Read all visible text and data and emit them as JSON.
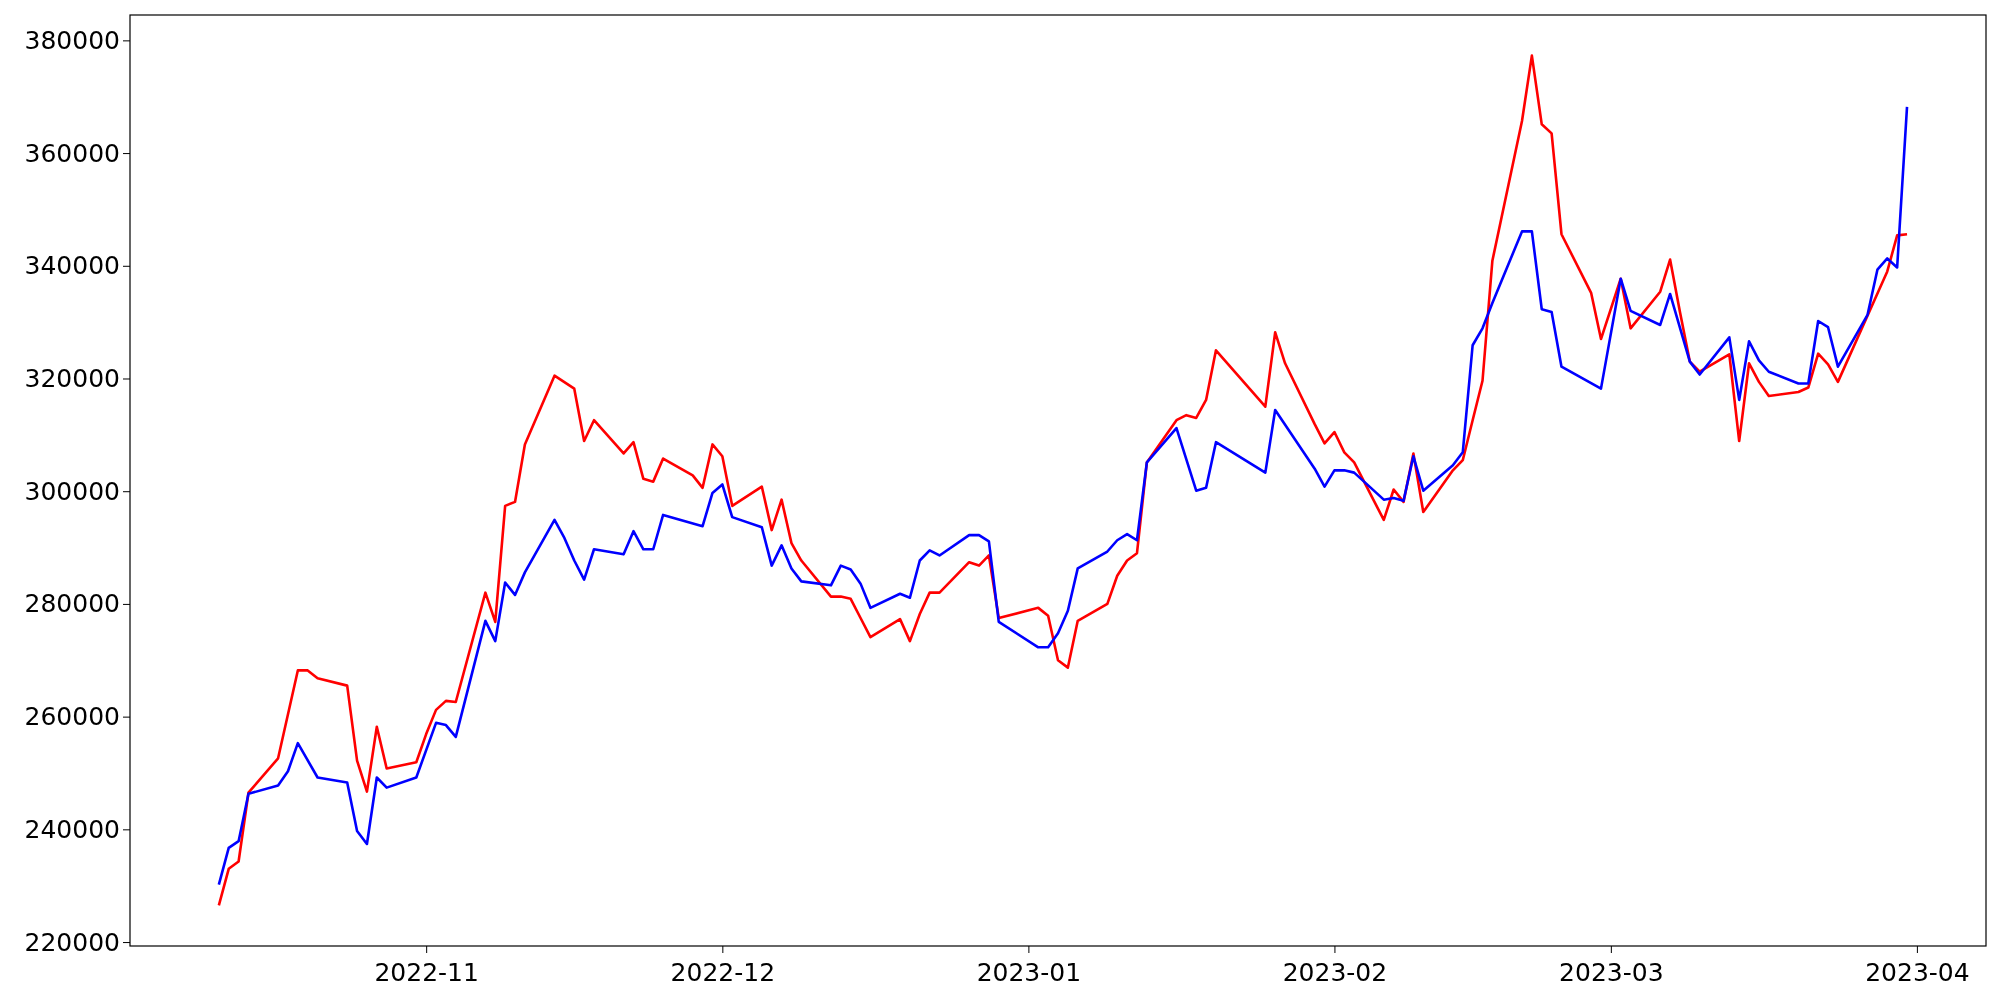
{
  "chart_data": {
    "type": "line",
    "xlim": [
      "2022-10-02",
      "2023-04-08"
    ],
    "xticks": [
      "2022-11",
      "2022-12",
      "2023-01",
      "2023-02",
      "2023-03",
      "2023-04"
    ],
    "ylim": [
      219300,
      384500
    ],
    "yticks": [
      220000,
      240000,
      260000,
      280000,
      300000,
      320000,
      340000,
      360000,
      380000
    ],
    "grid": false,
    "line_style": "solid",
    "marker": "none",
    "series": [
      {
        "color": "#ff0000",
        "x": [
          "2022-10-11",
          "2022-10-12",
          "2022-10-13",
          "2022-10-14",
          "2022-10-17",
          "2022-10-19",
          "2022-10-20",
          "2022-10-21",
          "2022-10-24",
          "2022-10-25",
          "2022-10-26",
          "2022-10-27",
          "2022-10-28",
          "2022-10-31",
          "2022-11-01",
          "2022-11-02",
          "2022-11-03",
          "2022-11-04",
          "2022-11-07",
          "2022-11-08",
          "2022-11-09",
          "2022-11-10",
          "2022-11-11",
          "2022-11-14",
          "2022-11-16",
          "2022-11-17",
          "2022-11-18",
          "2022-11-21",
          "2022-11-22",
          "2022-11-23",
          "2022-11-24",
          "2022-11-25",
          "2022-11-28",
          "2022-11-29",
          "2022-11-30",
          "2022-12-01",
          "2022-12-02",
          "2022-12-05",
          "2022-12-06",
          "2022-12-07",
          "2022-12-08",
          "2022-12-09",
          "2022-12-12",
          "2022-12-13",
          "2022-12-14",
          "2022-12-15",
          "2022-12-16",
          "2022-12-19",
          "2022-12-20",
          "2022-12-21",
          "2022-12-22",
          "2022-12-23",
          "2022-12-26",
          "2022-12-27",
          "2022-12-28",
          "2022-12-29",
          "2023-01-02",
          "2023-01-03",
          "2023-01-04",
          "2023-01-05",
          "2023-01-06",
          "2023-01-09",
          "2023-01-10",
          "2023-01-11",
          "2023-01-12",
          "2023-01-13",
          "2023-01-16",
          "2023-01-17",
          "2023-01-18",
          "2023-01-19",
          "2023-01-20",
          "2023-01-25",
          "2023-01-26",
          "2023-01-27",
          "2023-01-30",
          "2023-01-31",
          "2023-02-01",
          "2023-02-02",
          "2023-02-03",
          "2023-02-06",
          "2023-02-07",
          "2023-02-08",
          "2023-02-09",
          "2023-02-10",
          "2023-02-13",
          "2023-02-14",
          "2023-02-15",
          "2023-02-16",
          "2023-02-17",
          "2023-02-20",
          "2023-02-21",
          "2023-02-22",
          "2023-02-23",
          "2023-02-24",
          "2023-02-27",
          "2023-02-28",
          "2023-03-02",
          "2023-03-03",
          "2023-03-06",
          "2023-03-07",
          "2023-03-08",
          "2023-03-09",
          "2023-03-10",
          "2023-03-13",
          "2023-03-14",
          "2023-03-15",
          "2023-03-16",
          "2023-03-17",
          "2023-03-20",
          "2023-03-21",
          "2023-03-22",
          "2023-03-23",
          "2023-03-24",
          "2023-03-29",
          "2023-03-30",
          "2023-03-31"
        ],
        "values": [
          226500,
          233000,
          234300,
          246500,
          252600,
          268200,
          268200,
          266800,
          265500,
          252200,
          246700,
          258200,
          250800,
          251900,
          256900,
          261200,
          262800,
          262600,
          282000,
          276800,
          297400,
          298100,
          308300,
          320500,
          318200,
          308900,
          312600,
          306700,
          308700,
          302200,
          301700,
          305800,
          302800,
          300600,
          308300,
          306200,
          297400,
          300800,
          293100,
          298500,
          290800,
          287700,
          281300,
          281300,
          280900,
          277500,
          274100,
          277300,
          273400,
          278200,
          282000,
          282000,
          287400,
          286800,
          288600,
          277500,
          279300,
          277900,
          270000,
          268700,
          277000,
          280000,
          285000,
          287700,
          289000,
          305100,
          312600,
          313500,
          313000,
          316200,
          325000,
          315000,
          328200,
          322700,
          311900,
          308500,
          310500,
          306900,
          305100,
          294900,
          300300,
          298100,
          306700,
          296300,
          303700,
          305500,
          312600,
          319600,
          340900,
          365700,
          377300,
          365100,
          363500,
          345600,
          335200,
          327000,
          337700,
          328900,
          335400,
          341100,
          331800,
          323000,
          321200,
          324300,
          308900,
          322700,
          319400,
          316900,
          317600,
          318400,
          324400,
          322500,
          319400,
          339000,
          345400,
          345600
        ]
      },
      {
        "color": "#0000ff",
        "x": [
          "2022-10-11",
          "2022-10-12",
          "2022-10-13",
          "2022-10-14",
          "2022-10-17",
          "2022-10-18",
          "2022-10-19",
          "2022-10-21",
          "2022-10-24",
          "2022-10-25",
          "2022-10-26",
          "2022-10-27",
          "2022-10-28",
          "2022-10-31",
          "2022-11-02",
          "2022-11-03",
          "2022-11-04",
          "2022-11-07",
          "2022-11-08",
          "2022-11-09",
          "2022-11-10",
          "2022-11-11",
          "2022-11-14",
          "2022-11-15",
          "2022-11-16",
          "2022-11-17",
          "2022-11-18",
          "2022-11-21",
          "2022-11-22",
          "2022-11-23",
          "2022-11-24",
          "2022-11-25",
          "2022-11-29",
          "2022-11-30",
          "2022-12-01",
          "2022-12-02",
          "2022-12-05",
          "2022-12-06",
          "2022-12-07",
          "2022-12-08",
          "2022-12-09",
          "2022-12-12",
          "2022-12-13",
          "2022-12-14",
          "2022-12-15",
          "2022-12-16",
          "2022-12-19",
          "2022-12-20",
          "2022-12-21",
          "2022-12-22",
          "2022-12-23",
          "2022-12-26",
          "2022-12-27",
          "2022-12-28",
          "2022-12-29",
          "2023-01-02",
          "2023-01-03",
          "2023-01-04",
          "2023-01-05",
          "2023-01-06",
          "2023-01-09",
          "2023-01-10",
          "2023-01-11",
          "2023-01-12",
          "2023-01-13",
          "2023-01-16",
          "2023-01-18",
          "2023-01-19",
          "2023-01-20",
          "2023-01-25",
          "2023-01-26",
          "2023-01-30",
          "2023-01-31",
          "2023-02-01",
          "2023-02-02",
          "2023-02-03",
          "2023-02-06",
          "2023-02-07",
          "2023-02-08",
          "2023-02-09",
          "2023-02-10",
          "2023-02-13",
          "2023-02-14",
          "2023-02-15",
          "2023-02-16",
          "2023-02-17",
          "2023-02-20",
          "2023-02-21",
          "2023-02-22",
          "2023-02-23",
          "2023-02-24",
          "2023-02-28",
          "2023-03-02",
          "2023-03-03",
          "2023-03-06",
          "2023-03-07",
          "2023-03-09",
          "2023-03-10",
          "2023-03-13",
          "2023-03-14",
          "2023-03-15",
          "2023-03-16",
          "2023-03-17",
          "2023-03-20",
          "2023-03-21",
          "2023-03-22",
          "2023-03-23",
          "2023-03-24",
          "2023-03-27",
          "2023-03-28",
          "2023-03-29",
          "2023-03-30",
          "2023-03-31"
        ],
        "values": [
          230200,
          236700,
          237900,
          246300,
          247800,
          250300,
          255300,
          249200,
          248300,
          239700,
          237400,
          249200,
          247400,
          249200,
          258900,
          258500,
          256400,
          277000,
          273400,
          283800,
          281600,
          285600,
          294900,
          291700,
          287700,
          284300,
          289700,
          288800,
          292900,
          289700,
          289700,
          295800,
          293800,
          299700,
          301200,
          295400,
          293600,
          286800,
          290400,
          286300,
          284000,
          283300,
          286800,
          286100,
          283600,
          279300,
          281800,
          281100,
          287700,
          289500,
          288600,
          292200,
          292200,
          291100,
          276800,
          272300,
          272300,
          274800,
          278800,
          286300,
          289300,
          291300,
          292400,
          291300,
          305100,
          311200,
          300100,
          300600,
          308700,
          303300,
          314400,
          304000,
          300800,
          303700,
          303700,
          303300,
          298500,
          298800,
          298300,
          306200,
          300100,
          304600,
          306900,
          325900,
          328900,
          333400,
          346100,
          346100,
          332300,
          331800,
          322100,
          318200,
          337700,
          332000,
          329500,
          335000,
          323000,
          320700,
          327300,
          316200,
          326600,
          323200,
          321200,
          319100,
          319100,
          330200,
          329100,
          322100,
          331300,
          339300,
          341300,
          339700,
          368200
        ]
      }
    ]
  }
}
